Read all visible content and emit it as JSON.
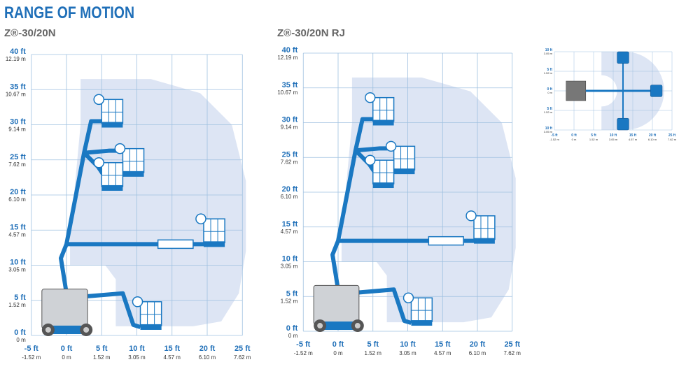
{
  "header": {
    "title": "RANGE OF MOTION"
  },
  "diagrams": [
    {
      "title": "Z®-30/20N",
      "y_labels": [
        {
          "ft": "40 ft",
          "m": "12.19 m"
        },
        {
          "ft": "35 ft",
          "m": "10.67 m"
        },
        {
          "ft": "30 ft",
          "m": "9.14 m"
        },
        {
          "ft": "25 ft",
          "m": "7.62 m"
        },
        {
          "ft": "20 ft",
          "m": "6.10 m"
        },
        {
          "ft": "15 ft",
          "m": "4.57 m"
        },
        {
          "ft": "10 ft",
          "m": "3.05 m"
        },
        {
          "ft": "5 ft",
          "m": "1.52 m"
        },
        {
          "ft": "0 ft",
          "m": "0 m"
        }
      ],
      "x_labels": [
        {
          "ft": "-5 ft",
          "m": "-1.52 m"
        },
        {
          "ft": "0 ft",
          "m": "0 m"
        },
        {
          "ft": "5 ft",
          "m": "1.52 m"
        },
        {
          "ft": "10 ft",
          "m": "3.05 m"
        },
        {
          "ft": "15 ft",
          "m": "4.57 m"
        },
        {
          "ft": "20 ft",
          "m": "6.10 m"
        },
        {
          "ft": "25 ft",
          "m": "7.62 m"
        }
      ]
    },
    {
      "title": "Z®-30/20N RJ",
      "y_labels": [
        {
          "ft": "40 ft",
          "m": "12.19 m"
        },
        {
          "ft": "35 ft",
          "m": "10.67 m"
        },
        {
          "ft": "30 ft",
          "m": "9.14 m"
        },
        {
          "ft": "25 ft",
          "m": "7.62 m"
        },
        {
          "ft": "20 ft",
          "m": "6.10 m"
        },
        {
          "ft": "15 ft",
          "m": "4.57 m"
        },
        {
          "ft": "10 ft",
          "m": "3.05 m"
        },
        {
          "ft": "5 ft",
          "m": "1.52 m"
        },
        {
          "ft": "0 ft",
          "m": "0 m"
        }
      ],
      "x_labels": [
        {
          "ft": "-5 ft",
          "m": "-1.52 m"
        },
        {
          "ft": "0 ft",
          "m": "0 m"
        },
        {
          "ft": "5 ft",
          "m": "1.52 m"
        },
        {
          "ft": "10 ft",
          "m": "3.05 m"
        },
        {
          "ft": "15 ft",
          "m": "4.57 m"
        },
        {
          "ft": "20 ft",
          "m": "6.10 m"
        },
        {
          "ft": "25 ft",
          "m": "7.62 m"
        }
      ]
    }
  ],
  "inset": {
    "y_labels": [
      {
        "ft": "10 ft",
        "m": "3.05 m"
      },
      {
        "ft": "5 ft",
        "m": "1.52 m"
      },
      {
        "ft": "0 ft",
        "m": "0 m"
      },
      {
        "ft": "5 ft",
        "m": "1.52 m"
      },
      {
        "ft": "10 ft",
        "m": "3.05 m"
      }
    ],
    "x_labels": [
      {
        "ft": "-5 ft",
        "m": "-1.52 m"
      },
      {
        "ft": "0 ft",
        "m": "0 m"
      },
      {
        "ft": "5 ft",
        "m": "1.52 m"
      },
      {
        "ft": "10 ft",
        "m": "3.05 m"
      },
      {
        "ft": "15 ft",
        "m": "4.57 m"
      },
      {
        "ft": "20 ft",
        "m": "6.10 m"
      },
      {
        "ft": "25 ft",
        "m": "7.62 m"
      }
    ]
  }
}
